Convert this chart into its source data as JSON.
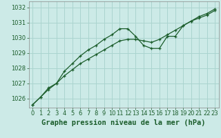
{
  "title": "Graphe pression niveau de la mer (hPa)",
  "background_color": "#cceae7",
  "grid_color": "#aad4cf",
  "line_color": "#1a5c2a",
  "xlim": [
    -0.5,
    23.5
  ],
  "ylim": [
    1025.4,
    1032.4
  ],
  "yticks": [
    1026,
    1027,
    1028,
    1029,
    1030,
    1031,
    1032
  ],
  "xticks": [
    0,
    1,
    2,
    3,
    4,
    5,
    6,
    7,
    8,
    9,
    10,
    11,
    12,
    13,
    14,
    15,
    16,
    17,
    18,
    19,
    20,
    21,
    22,
    23
  ],
  "series1_x": [
    0,
    1,
    2,
    3,
    4,
    5,
    6,
    7,
    8,
    9,
    10,
    11,
    12,
    13,
    14,
    15,
    16,
    17,
    18,
    19,
    20,
    21,
    22,
    23
  ],
  "series1_y": [
    1025.6,
    1026.1,
    1026.7,
    1027.0,
    1027.5,
    1027.9,
    1028.3,
    1028.6,
    1028.9,
    1029.2,
    1029.5,
    1029.8,
    1029.9,
    1029.9,
    1029.8,
    1029.7,
    1029.9,
    1030.2,
    1030.5,
    1030.8,
    1031.1,
    1031.3,
    1031.5,
    1031.8
  ],
  "series2_x": [
    0,
    1,
    2,
    3,
    4,
    5,
    6,
    7,
    8,
    9,
    10,
    11,
    12,
    13,
    14,
    15,
    16,
    17,
    18,
    19,
    20,
    21,
    22,
    23
  ],
  "series2_y": [
    1025.6,
    1026.1,
    1026.6,
    1027.0,
    1027.8,
    1028.3,
    1028.8,
    1029.2,
    1029.5,
    1029.9,
    1030.2,
    1030.6,
    1030.6,
    1030.1,
    1029.5,
    1029.3,
    1029.3,
    1030.1,
    1030.1,
    1030.8,
    1031.1,
    1031.4,
    1031.6,
    1031.9
  ],
  "title_fontsize": 7.5,
  "tick_fontsize": 6
}
